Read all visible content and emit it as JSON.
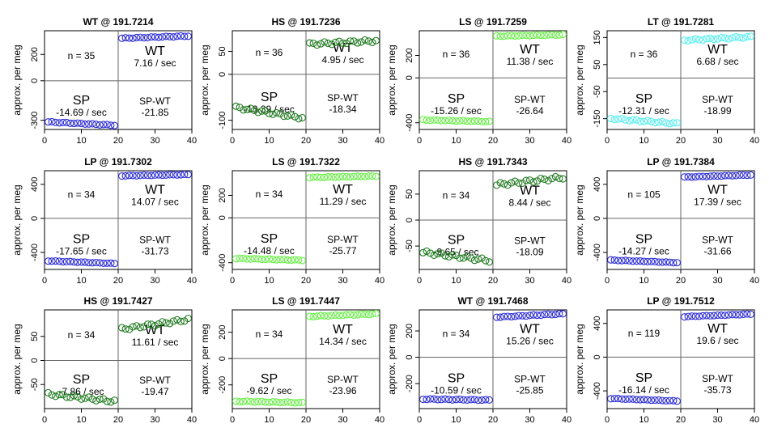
{
  "colors": {
    "WT": "#2a2ad4",
    "HS": "#1f7a1f",
    "LS": "#66ee44",
    "LT": "#55eeee",
    "LP": "#2a2ad4"
  },
  "chart_data": [
    {
      "type": "scatter",
      "title": "WT @ 191.7214",
      "ylabel": "approx. per meg",
      "color_key": "WT",
      "xlim": [
        0,
        40
      ],
      "xticks": [
        0,
        10,
        20,
        30,
        40
      ],
      "yticks": [
        -300,
        0,
        200
      ],
      "ylim": [
        -370,
        380
      ],
      "n_label": "n = 35",
      "sp_label": "SP",
      "sp_rate": "-14.69 / sec",
      "wt_label": "WT",
      "wt_rate": "7.16 / sec",
      "diff_label": "SP-WT",
      "diff_value": "-21.85",
      "sp_start": -313,
      "sp_end": -338,
      "wt_start": 323,
      "wt_end": 340,
      "wobble": 3
    },
    {
      "type": "scatter",
      "title": "HS @ 191.7236",
      "ylabel": "approx. per meg",
      "color_key": "HS",
      "xlim": [
        0,
        40
      ],
      "xticks": [
        0,
        10,
        20,
        30,
        40
      ],
      "yticks": [
        -100,
        0,
        50
      ],
      "ylim": [
        -120,
        95
      ],
      "n_label": "n = 36",
      "sp_label": "SP",
      "sp_rate": "-13.39 / sec",
      "wt_label": "WT",
      "wt_rate": "4.95 / sec",
      "diff_label": "SP-WT",
      "diff_value": "-18.34",
      "sp_start": -72,
      "sp_end": -95,
      "wt_start": 66,
      "wt_end": 73,
      "wobble": 3
    },
    {
      "type": "scatter",
      "title": "LS @ 191.7259",
      "ylabel": "approx. per meg",
      "color_key": "LS",
      "xlim": [
        0,
        40
      ],
      "xticks": [
        0,
        10,
        20,
        30,
        40
      ],
      "yticks": [
        -400,
        0,
        200
      ],
      "ylim": [
        -460,
        420
      ],
      "n_label": "n = 36",
      "sp_label": "SP",
      "sp_rate": "-15.26 / sec",
      "wt_label": "WT",
      "wt_rate": "11.38 / sec",
      "diff_label": "SP-WT",
      "diff_value": "-26.64",
      "sp_start": -375,
      "sp_end": -390,
      "wt_start": 372,
      "wt_end": 385,
      "wobble": 3
    },
    {
      "type": "scatter",
      "title": "LT @ 191.7281",
      "ylabel": "approx. per meg",
      "color_key": "LT",
      "xlim": [
        0,
        40
      ],
      "xticks": [
        0,
        10,
        20,
        30,
        40
      ],
      "yticks": [
        -150,
        -50,
        50,
        150
      ],
      "ylim": [
        -190,
        175
      ],
      "n_label": "n = 36",
      "sp_label": "SP",
      "sp_rate": "-12.31 / sec",
      "wt_label": "WT",
      "wt_rate": "6.68 / sec",
      "diff_label": "SP-WT",
      "diff_value": "-18.99",
      "sp_start": -150,
      "sp_end": -168,
      "wt_start": 140,
      "wt_end": 152,
      "wobble": 3
    },
    {
      "type": "scatter",
      "title": "LP @ 191.7302",
      "ylabel": "approx. per meg",
      "color_key": "LP",
      "xlim": [
        0,
        40
      ],
      "xticks": [
        0,
        10,
        20,
        30,
        40
      ],
      "yticks": [
        -400,
        0,
        400
      ],
      "ylim": [
        -600,
        560
      ],
      "n_label": "n = 34",
      "sp_label": "SP",
      "sp_rate": "-17.65 / sec",
      "wt_label": "WT",
      "wt_rate": "14.07 / sec",
      "diff_label": "SP-WT",
      "diff_value": "-31.73",
      "sp_start": -500,
      "sp_end": -530,
      "wt_start": 500,
      "wt_end": 515,
      "wobble": 3
    },
    {
      "type": "scatter",
      "title": "LS @ 191.7322",
      "ylabel": "approx. per meg",
      "color_key": "LS",
      "xlim": [
        0,
        40
      ],
      "xticks": [
        0,
        10,
        20,
        30,
        40
      ],
      "yticks": [
        -400,
        0,
        200
      ],
      "ylim": [
        -460,
        420
      ],
      "n_label": "n = 34",
      "sp_label": "SP",
      "sp_rate": "-14.48 / sec",
      "wt_label": "WT",
      "wt_rate": "11.29 / sec",
      "diff_label": "SP-WT",
      "diff_value": "-25.77",
      "sp_start": -362,
      "sp_end": -378,
      "wt_start": 360,
      "wt_end": 372,
      "wobble": 3
    },
    {
      "type": "scatter",
      "title": "HS @ 191.7343",
      "ylabel": "approx. per meg",
      "color_key": "HS",
      "xlim": [
        0,
        40
      ],
      "xticks": [
        0,
        10,
        20,
        30,
        40
      ],
      "yticks": [
        -50,
        0,
        50
      ],
      "ylim": [
        -95,
        95
      ],
      "n_label": "n = 34",
      "sp_label": "SP",
      "sp_rate": "-9.65 / sec",
      "wt_label": "WT",
      "wt_rate": "8.44 / sec",
      "diff_label": "SP-WT",
      "diff_value": "-18.09",
      "sp_start": -62,
      "sp_end": -78,
      "wt_start": 68,
      "wt_end": 82,
      "wobble": 3
    },
    {
      "type": "scatter",
      "title": "LP @ 191.7384",
      "ylabel": "approx. per meg",
      "color_key": "LP",
      "xlim": [
        0,
        40
      ],
      "xticks": [
        0,
        10,
        20,
        30,
        40
      ],
      "yticks": [
        -400,
        0,
        400
      ],
      "ylim": [
        -600,
        560
      ],
      "n_label": "n = 105",
      "sp_label": "SP",
      "sp_rate": "-14.27 / sec",
      "wt_label": "WT",
      "wt_rate": "17.39 / sec",
      "diff_label": "SP-WT",
      "diff_value": "-31.66",
      "sp_start": -490,
      "sp_end": -520,
      "wt_start": 485,
      "wt_end": 510,
      "wobble": 3
    },
    {
      "type": "scatter",
      "title": "HS @ 191.7427",
      "ylabel": "approx. per meg",
      "color_key": "HS",
      "xlim": [
        0,
        40
      ],
      "xticks": [
        0,
        10,
        20,
        30,
        40
      ],
      "yticks": [
        -50,
        0,
        50
      ],
      "ylim": [
        -100,
        105
      ],
      "n_label": "n = 34",
      "sp_label": "SP",
      "sp_rate": "-7.86 / sec",
      "wt_label": "WT",
      "wt_rate": "11.61 / sec",
      "diff_label": "SP-WT",
      "diff_value": "-19.47",
      "sp_start": -70,
      "sp_end": -85,
      "wt_start": 65,
      "wt_end": 85,
      "wobble": 3
    },
    {
      "type": "scatter",
      "title": "LS @ 191.7447",
      "ylabel": "approx. per meg",
      "color_key": "LS",
      "xlim": [
        0,
        40
      ],
      "xticks": [
        0,
        10,
        20,
        30,
        40
      ],
      "yticks": [
        -200,
        0,
        200
      ],
      "ylim": [
        -380,
        370
      ],
      "n_label": "n = 34",
      "sp_label": "SP",
      "sp_rate": "-9.62 / sec",
      "wt_label": "WT",
      "wt_rate": "14.34 / sec",
      "diff_label": "SP-WT",
      "diff_value": "-23.96",
      "sp_start": -325,
      "sp_end": -335,
      "wt_start": 320,
      "wt_end": 340,
      "wobble": 3
    },
    {
      "type": "scatter",
      "title": "WT @ 191.7468",
      "ylabel": "approx. per meg",
      "color_key": "WT",
      "xlim": [
        0,
        40
      ],
      "xticks": [
        0,
        10,
        20,
        30,
        40
      ],
      "yticks": [
        -200,
        0,
        200
      ],
      "ylim": [
        -390,
        360
      ],
      "n_label": "n = 34",
      "sp_label": "SP",
      "sp_rate": "-10.59 / sec",
      "wt_label": "WT",
      "wt_rate": "15.26 / sec",
      "diff_label": "SP-WT",
      "diff_value": "-25.85",
      "sp_start": -318,
      "sp_end": -325,
      "wt_start": 305,
      "wt_end": 330,
      "wobble": 3
    },
    {
      "type": "scatter",
      "title": "LP @ 191.7512",
      "ylabel": "approx. per meg",
      "color_key": "LP",
      "xlim": [
        0,
        40
      ],
      "xticks": [
        0,
        10,
        20,
        30,
        40
      ],
      "yticks": [
        -400,
        0,
        400
      ],
      "ylim": [
        -610,
        560
      ],
      "n_label": "n = 119",
      "sp_label": "SP",
      "sp_rate": "-16.14 / sec",
      "wt_label": "WT",
      "wt_rate": "19.6 / sec",
      "diff_label": "SP-WT",
      "diff_value": "-35.73",
      "sp_start": -490,
      "sp_end": -520,
      "wt_start": 480,
      "wt_end": 510,
      "wobble": 3
    }
  ]
}
